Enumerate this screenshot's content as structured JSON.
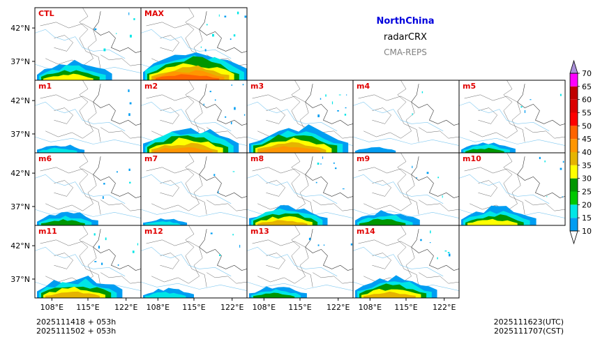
{
  "title": {
    "region": "NorthChina",
    "product": "radarCRX",
    "source": "CMA-REPS"
  },
  "panels": [
    {
      "label": "CTL",
      "intensity": 0.55
    },
    {
      "label": "MAX",
      "intensity": 1.0
    },
    {
      "label": "m1",
      "intensity": 0.15
    },
    {
      "label": "m2",
      "intensity": 0.85
    },
    {
      "label": "m3",
      "intensity": 0.9
    },
    {
      "label": "m4",
      "intensity": 0.05
    },
    {
      "label": "m5",
      "intensity": 0.25
    },
    {
      "label": "m6",
      "intensity": 0.35
    },
    {
      "label": "m7",
      "intensity": 0.1
    },
    {
      "label": "m8",
      "intensity": 0.6
    },
    {
      "label": "m9",
      "intensity": 0.4
    },
    {
      "label": "m10",
      "intensity": 0.55
    },
    {
      "label": "m11",
      "intensity": 0.7
    },
    {
      "label": "m12",
      "intensity": 0.2
    },
    {
      "label": "m13",
      "intensity": 0.3
    },
    {
      "label": "m14",
      "intensity": 0.65
    }
  ],
  "axes": {
    "lat_ticks": [
      "42°N",
      "37°N"
    ],
    "lon_ticks": [
      "108°E",
      "115°E",
      "122°E"
    ]
  },
  "colorbar": {
    "levels": [
      "10",
      "15",
      "20",
      "25",
      "30",
      "35",
      "40",
      "45",
      "50",
      "55",
      "60",
      "65",
      "70"
    ],
    "colors": [
      "#009df2",
      "#00e6e6",
      "#00c800",
      "#009600",
      "#ffff00",
      "#e6b400",
      "#ff9600",
      "#ff6400",
      "#ff0000",
      "#dc0000",
      "#c00000",
      "#ff00ff",
      "#9600b4"
    ],
    "over_color": "#a98fd9",
    "under_color": "#ffffff"
  },
  "footer": {
    "init_line": "2025111418  +  053h",
    "init_line_cst": "2025111502  +  053h",
    "valid_utc": "2025111623(UTC)",
    "valid_cst": "2025111707(CST)"
  }
}
